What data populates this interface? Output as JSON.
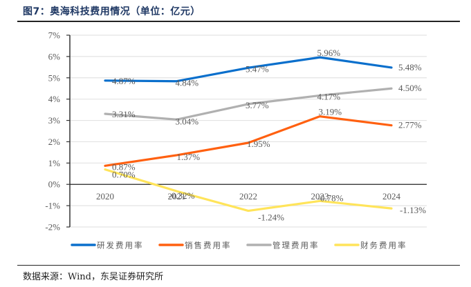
{
  "figure": {
    "title": "图7：奥海科技费用情况（单位：亿元）",
    "source": "数据来源：Wind，东吴证券研究所"
  },
  "chart_data": {
    "type": "line",
    "title": "图7：奥海科技费用情况（单位：亿元）",
    "xlabel": "",
    "ylabel": "",
    "categories": [
      "2020",
      "2021",
      "2022",
      "2023",
      "2024"
    ],
    "ylim": [
      -2,
      7
    ],
    "yticks": [
      7,
      6,
      5,
      4,
      3,
      2,
      1,
      0,
      -1,
      -2
    ],
    "ytick_labels": [
      "7%",
      "6%",
      "5%",
      "4%",
      "3%",
      "2%",
      "1%",
      "0%",
      "-1%",
      "-2%"
    ],
    "grid": true,
    "legend_position": "bottom",
    "series": [
      {
        "name": "研发费用率",
        "color": "#0A6FCC",
        "values": [
          4.87,
          4.84,
          5.47,
          5.96,
          5.48
        ],
        "labels": [
          "4.87%",
          "4.84%",
          "5.47%",
          "5.96%",
          "5.48%"
        ]
      },
      {
        "name": "销售费用率",
        "color": "#FF6010",
        "values": [
          0.87,
          1.37,
          1.95,
          3.19,
          2.77
        ],
        "labels": [
          "0.87%",
          "1.37%",
          "1.95%",
          "3.19%",
          "2.77%"
        ]
      },
      {
        "name": "管理费用率",
        "color": "#B0B0B0",
        "values": [
          3.31,
          3.04,
          3.77,
          4.17,
          4.5
        ],
        "labels": [
          "3.31%",
          "3.04%",
          "3.77%",
          "4.17%",
          "4.50%"
        ]
      },
      {
        "name": "财务费用率",
        "color": "#FFE45A",
        "values": [
          0.7,
          -0.32,
          -1.24,
          -0.78,
          -1.13
        ],
        "labels": [
          "0.70%",
          "-0.32%",
          "-1.24%",
          "-0.78%",
          "-1.13%"
        ]
      }
    ]
  }
}
